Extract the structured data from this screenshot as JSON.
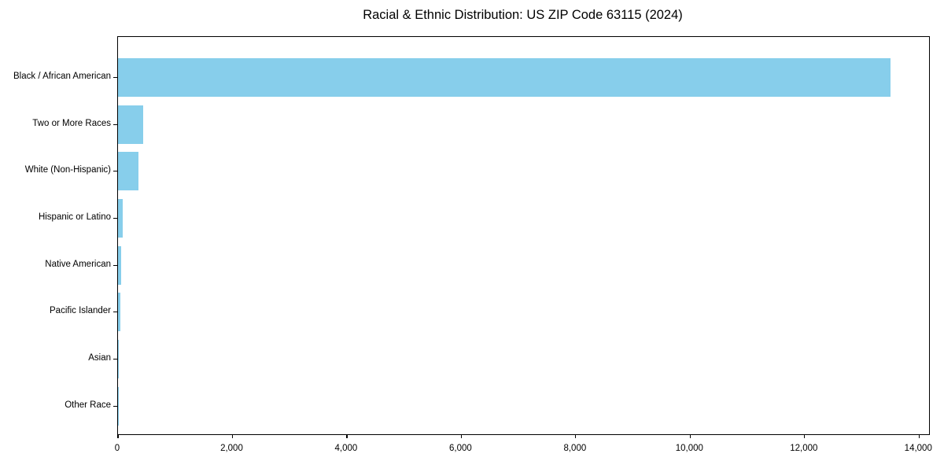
{
  "title": "Racial & Ethnic Distribution: US ZIP Code 63115 (2024)",
  "chart_data": {
    "type": "bar",
    "orientation": "horizontal",
    "title": "Racial & Ethnic Distribution: US ZIP Code 63115 (2024)",
    "xlabel": "",
    "ylabel": "",
    "categories": [
      "Black / African American",
      "Two or More Races",
      "White (Non-Hispanic)",
      "Hispanic or Latino",
      "Native American",
      "Pacific Islander",
      "Asian",
      "Other Race"
    ],
    "values": [
      13500,
      440,
      355,
      82,
      60,
      40,
      15,
      5
    ],
    "xlim": [
      0,
      14175
    ],
    "xticks": [
      0,
      2000,
      4000,
      6000,
      8000,
      10000,
      12000,
      14000
    ],
    "xtick_labels": [
      "0",
      "2,000",
      "4,000",
      "6,000",
      "8,000",
      "10,000",
      "12,000",
      "14,000"
    ],
    "bar_color": "#87CEEB",
    "frame_color": "#000000",
    "text_color": "#000000",
    "background_color": "#ffffff",
    "grid": false,
    "legend": "none"
  }
}
